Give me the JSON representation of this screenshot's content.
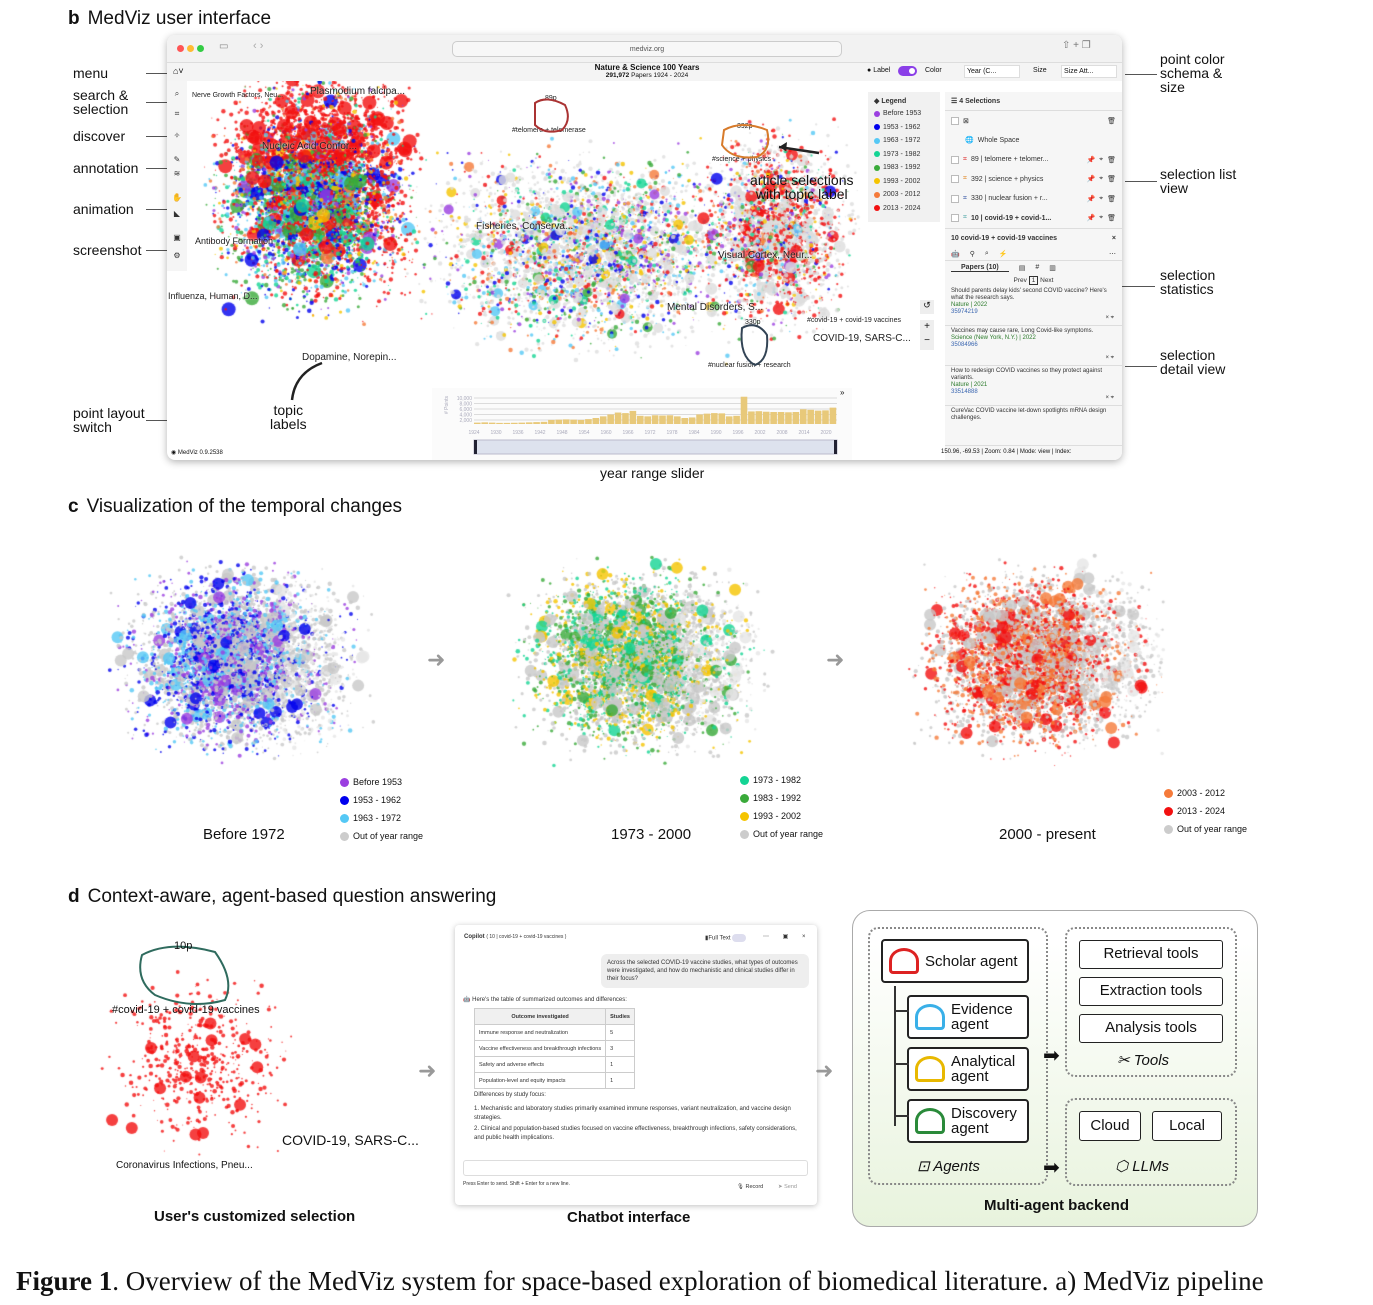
{
  "figure": {
    "caption_label": "Figure 1",
    "caption_text": ". Overview of the MedViz system for space-based exploration of biomedical literature. a) MedViz pipeline"
  },
  "panel_b": {
    "letter": "b",
    "title": "MedViz user interface",
    "left_callouts": [
      "menu",
      "search &\nselection",
      "discover",
      "annotation",
      "animation",
      "screenshot",
      "point layout\nswitch"
    ],
    "right_callouts": [
      "point color\nschema &\nsize",
      "selection list\nview",
      "selection\nstatistics",
      "selection\ndetail view"
    ],
    "bottom_callout": "year range slider",
    "map_callouts": {
      "article_selections": "article selections\nwith topic label",
      "topic_labels": "topic\nlabels"
    },
    "browser": {
      "url": "medviz.org"
    },
    "header": {
      "title": "Nature & Science 100 Years",
      "count": "291,972",
      "count_suffix": "Papers",
      "range": "1924 - 2024"
    },
    "controls": {
      "label": "Label",
      "label_on": true,
      "color": "Color",
      "color_value": "Year (C...",
      "size": "Size",
      "size_value": "Size Att..."
    },
    "map_labels": [
      "Nerve Growth Factors, Neu...",
      "Plasmodium falcipa...",
      "Nucleic Acid Confor...",
      "Fisheries, Conserva...",
      "Antibody Formation",
      "Visual Cortex, Neur...",
      "Influenza, Human, D...",
      "Mental Disorders, S...",
      "Dopamine, Norepin...",
      "COVID-19, SARS-C..."
    ],
    "selection_tags": [
      {
        "count": "89p",
        "tag": "#telomere + telomerase",
        "color": "#a33"
      },
      {
        "count": "392p",
        "tag": "#science + physics",
        "color": "#d77a2a"
      },
      {
        "count": "330p",
        "tag": "#nuclear fusion + research",
        "color": "#345"
      },
      {
        "tag": "#covid-19 + covid-19 vaccines"
      }
    ],
    "legend": {
      "title": "Legend",
      "items": [
        {
          "label": "Before 1953",
          "color": "#9b3fe0"
        },
        {
          "label": "1953 - 1962",
          "color": "#0000ee"
        },
        {
          "label": "1963 - 1972",
          "color": "#55c8f5"
        },
        {
          "label": "1973 - 1982",
          "color": "#14d494"
        },
        {
          "label": "1983 - 1992",
          "color": "#3aaa3a"
        },
        {
          "label": "1993 - 2002",
          "color": "#f5c400"
        },
        {
          "label": "2003 - 2012",
          "color": "#f57a3a"
        },
        {
          "label": "2013 - 2024",
          "color": "#f21010"
        }
      ]
    },
    "selections": {
      "title": "4 Selections",
      "whole_space": "Whole Space",
      "items": [
        {
          "label": "89 | telomere + telomer...",
          "color": "#d33"
        },
        {
          "label": "392 | science + physics",
          "color": "#e08a2a"
        },
        {
          "label": "330 | nuclear fusion + r...",
          "color": "#3a5aa8"
        },
        {
          "label": "10 | covid-19 + covid-1...",
          "color": "#5aa"
        }
      ]
    },
    "detail": {
      "title": "10 covid-19 + covid-19 vaccines",
      "tab": "Papers (10)",
      "prev": "Prev",
      "page": "1",
      "next": "Next",
      "papers": [
        {
          "title": "Should parents delay kids' second COVID vaccine? Here's what the research says.",
          "source": "Nature | 2022",
          "pmid": "35974219"
        },
        {
          "title": "Vaccines may cause rare, Long Covid-like symptoms.",
          "source": "Science (New York, N.Y.) | 2022",
          "pmid": "35084966"
        },
        {
          "title": "How to redesign COVID vaccines so they protect against variants.",
          "source": "Nature | 2021",
          "pmid": "33514888"
        },
        {
          "title": "CureVac COVID vaccine let-down spotlights mRNA design challenges.",
          "source": "",
          "pmid": ""
        }
      ]
    },
    "status": {
      "version": "MedViz 0.9.2538",
      "coords": "150.96, -69.53 | Zoom: 0.84 | Mode: view | Index:"
    },
    "year_histogram": {
      "ylabel": "# Points",
      "yticks": [
        "10,000",
        "8,000",
        "6,000",
        "4,000",
        "2,000"
      ],
      "xticks": [
        "1924",
        "1930",
        "1936",
        "1942",
        "1948",
        "1954",
        "1960",
        "1966",
        "1972",
        "1978",
        "1984",
        "1990",
        "1996",
        "2002",
        "2008",
        "2014",
        "2020"
      ],
      "values": [
        500,
        600,
        500,
        400,
        400,
        450,
        500,
        600,
        700,
        800,
        1500,
        1600,
        1700,
        1600,
        1500,
        1800,
        2200,
        2800,
        3500,
        4200,
        4000,
        4800,
        3000,
        2800,
        3200,
        3100,
        3200,
        2800,
        2200,
        2400,
        3500,
        3800,
        4000,
        3900,
        2800,
        3000,
        10000,
        4600,
        4700,
        4500,
        4400,
        4400,
        4300,
        4400,
        5400,
        5200,
        4900,
        5000,
        6000
      ],
      "ymax": 11000
    }
  },
  "panel_c": {
    "letter": "c",
    "title": "Visualization of the temporal changes",
    "views": [
      {
        "caption": "Before 1972",
        "legend": [
          {
            "label": "Before 1953",
            "color": "#9b3fe0"
          },
          {
            "label": "1953 - 1962",
            "color": "#0000ee"
          },
          {
            "label": "1963 - 1972",
            "color": "#55c8f5"
          },
          {
            "label": "Out of year range",
            "color": "#ccc"
          }
        ]
      },
      {
        "caption": "1973 - 2000",
        "legend": [
          {
            "label": "1973 - 1982",
            "color": "#14d494"
          },
          {
            "label": "1983 - 1992",
            "color": "#3aaa3a"
          },
          {
            "label": "1993 - 2002",
            "color": "#f5c400"
          },
          {
            "label": "Out of year range",
            "color": "#ccc"
          }
        ]
      },
      {
        "caption": "2000 - present",
        "legend": [
          {
            "label": "2003 - 2012",
            "color": "#f57a3a"
          },
          {
            "label": "2013 - 2024",
            "color": "#f21010"
          },
          {
            "label": "Out of year range",
            "color": "#ccc"
          }
        ]
      }
    ]
  },
  "panel_d": {
    "letter": "d",
    "title": "Context-aware, agent-based question answering",
    "selection": {
      "caption": "User's customized selection",
      "count": "10p",
      "tag": "#covid-19 + covid-19 vaccines",
      "label1": "COVID-19, SARS-C...",
      "label2": "Coronavirus Infections, Pneu..."
    },
    "chat": {
      "caption": "Chatbot interface",
      "title": "Copilot",
      "context": "( 10 | covid-19 + covid-19 vaccines )",
      "full_text": "Full Text",
      "question": "Across the selected COVID-19 vaccine studies, what types of outcomes were investigated, and how do mechanistic and clinical studies differ in their focus?",
      "intro": "Here's the table of summarized outcomes and differences:",
      "table": {
        "headers": [
          "Outcome investigated",
          "Studies"
        ],
        "rows": [
          [
            "Immune response and neutralization",
            "5"
          ],
          [
            "Vaccine effectiveness and breakthrough infections",
            "3"
          ],
          [
            "Safety and adverse effects",
            "1"
          ],
          [
            "Population-level and equity impacts",
            "1"
          ]
        ]
      },
      "diff_title": "Differences by study focus:",
      "diffs": [
        "1. Mechanistic and laboratory studies primarily examined immune responses, variant neutralization, and vaccine design strategies.",
        "2. Clinical and population-based studies focused on vaccine effectiveness, breakthrough infections, safety considerations, and public health implications."
      ],
      "hint": "Press Enter to send. Shift + Enter for a new line.",
      "record": "Record",
      "send": "Send"
    },
    "backend": {
      "caption": "Multi-agent backend",
      "agents": [
        "Scholar agent",
        "Evidence\nagent",
        "Analytical\nagent",
        "Discovery\nagent"
      ],
      "agents_label": "Agents",
      "tools": [
        "Retrieval tools",
        "Extraction tools",
        "Analysis tools"
      ],
      "tools_label": "Tools",
      "llms": [
        "Cloud",
        "Local"
      ],
      "llms_label": "LLMs"
    }
  }
}
